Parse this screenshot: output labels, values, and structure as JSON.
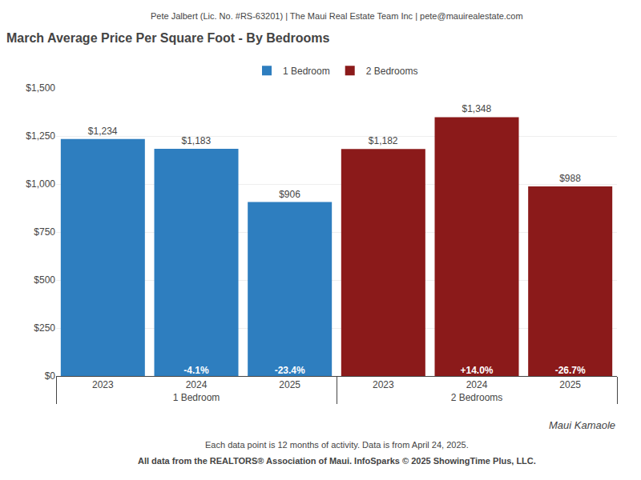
{
  "chart_data": {
    "type": "bar",
    "header": "Pete Jalbert (Lic. No. #RS-63201) | The Maui Real Estate Team Inc | pete@mauirealestate.com",
    "title": "March Average Price Per Square Foot - By Bedrooms",
    "categories": [
      "2023",
      "2024",
      "2025"
    ],
    "series": [
      {
        "name": "1 Bedroom",
        "color": "#2e7ebf",
        "values": [
          1234,
          1183,
          906
        ],
        "value_labels": [
          "$1,234",
          "$1,183",
          "$906"
        ],
        "annotations": [
          null,
          "-4.1%",
          "-23.4%"
        ]
      },
      {
        "name": "2 Bedrooms",
        "color": "#8b1a1a",
        "values": [
          1182,
          1348,
          988
        ],
        "value_labels": [
          "$1,182",
          "$1,348",
          "$988"
        ],
        "annotations": [
          null,
          "+14.0%",
          "-26.7%"
        ]
      }
    ],
    "ylim": [
      0,
      1500
    ],
    "yticks": [
      {
        "value": 0,
        "label": "$0"
      },
      {
        "value": 250,
        "label": "$250"
      },
      {
        "value": 500,
        "label": "$500"
      },
      {
        "value": 750,
        "label": "$750"
      },
      {
        "value": 1000,
        "label": "$1,000"
      },
      {
        "value": 1250,
        "label": "$1,250"
      },
      {
        "value": 1500,
        "label": "$1,500"
      }
    ],
    "grid": true,
    "legend": "top",
    "data_labels": true,
    "watermark": "Maui Kamaole",
    "footer_note": "Each data point is 12 months of activity. Data is from April 24, 2025.",
    "source": "All data from the REALTORS® Association of Maui. InfoSparks © 2025 ShowingTime Plus, LLC."
  }
}
